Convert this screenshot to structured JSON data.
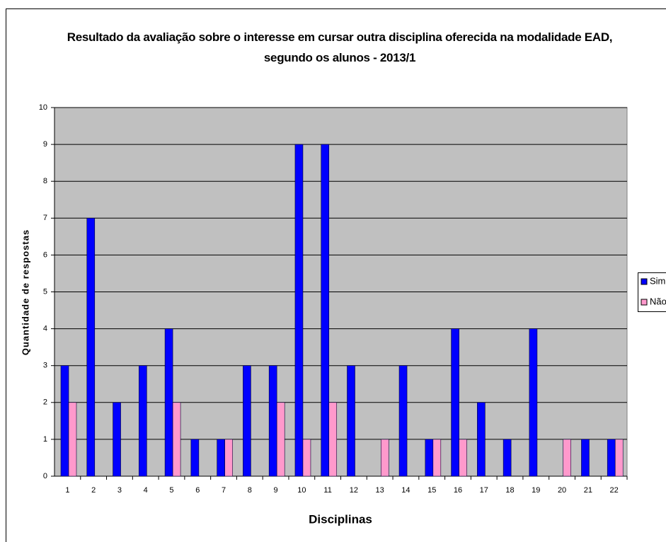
{
  "chart_data": {
    "type": "bar",
    "title": "Resultado da avaliação sobre o interesse em cursar outra disciplina oferecida na modalidade EAD, segundo os alunos - 2013/1",
    "x_label": "Disciplinas",
    "y_label": "Quantidade de respostas",
    "categories": [
      "1",
      "2",
      "3",
      "4",
      "5",
      "6",
      "7",
      "8",
      "9",
      "10",
      "11",
      "12",
      "13",
      "14",
      "15",
      "16",
      "17",
      "18",
      "19",
      "20",
      "21",
      "22"
    ],
    "series": [
      {
        "name": "Sim",
        "color": "#0000ff",
        "values": [
          3,
          7,
          2,
          3,
          4,
          1,
          1,
          3,
          3,
          9,
          9,
          3,
          0,
          3,
          1,
          4,
          2,
          1,
          4,
          0,
          1,
          1
        ]
      },
      {
        "name": "Não",
        "color": "#ff99cc",
        "values": [
          2,
          0,
          0,
          0,
          2,
          0,
          1,
          0,
          2,
          1,
          2,
          0,
          1,
          0,
          1,
          1,
          0,
          0,
          0,
          1,
          0,
          1
        ]
      }
    ],
    "ylim": [
      0,
      10
    ],
    "yticks": [
      0,
      1,
      2,
      3,
      4,
      5,
      6,
      7,
      8,
      9,
      10
    ],
    "grid": true,
    "legend": "right"
  }
}
